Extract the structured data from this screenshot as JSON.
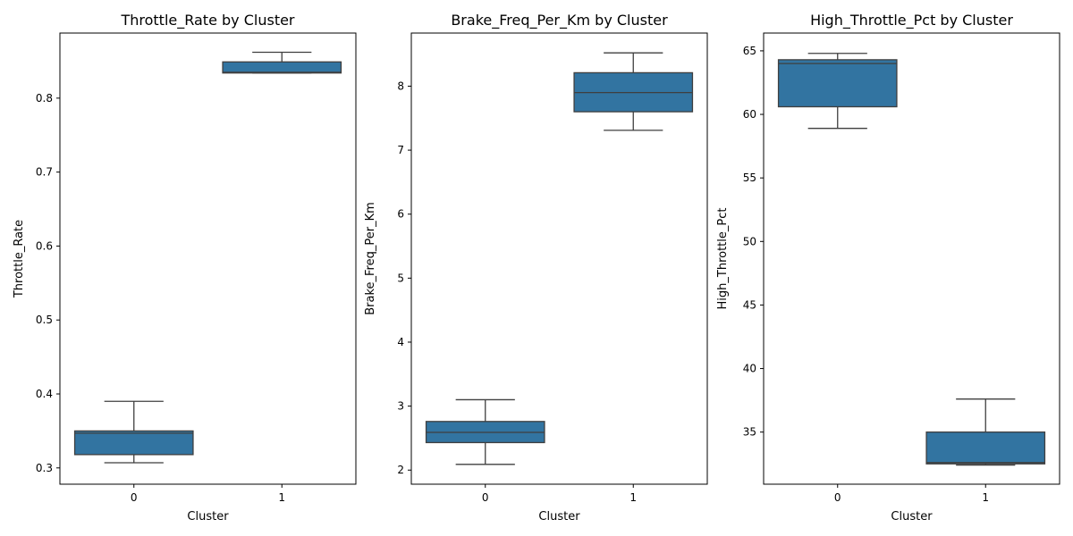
{
  "colors": {
    "box_fill": "#3274a1",
    "line": "#3f3f3f",
    "axis": "#000000",
    "background": "#ffffff"
  },
  "chart_data": [
    {
      "type": "box",
      "title": "Throttle_Rate by Cluster",
      "xlabel": "Cluster",
      "ylabel": "Throttle_Rate",
      "categories": [
        "0",
        "1"
      ],
      "ylim": [
        0.278,
        0.888
      ],
      "yticks": [
        0.3,
        0.4,
        0.5,
        0.6,
        0.7,
        0.8
      ],
      "ytick_labels": [
        "0.3",
        "0.4",
        "0.5",
        "0.6",
        "0.7",
        "0.8"
      ],
      "boxes": [
        {
          "whisker_low": 0.307,
          "q1": 0.318,
          "median": 0.347,
          "q3": 0.35,
          "whisker_high": 0.39
        },
        {
          "whisker_low": 0.834,
          "q1": 0.834,
          "median": 0.835,
          "q3": 0.849,
          "whisker_high": 0.862
        }
      ]
    },
    {
      "type": "box",
      "title": "Brake_Freq_Per_Km by Cluster",
      "xlabel": "Cluster",
      "ylabel": "Brake_Freq_Per_Km",
      "categories": [
        "0",
        "1"
      ],
      "ylim": [
        1.78,
        8.83
      ],
      "yticks": [
        2,
        3,
        4,
        5,
        6,
        7,
        8
      ],
      "ytick_labels": [
        "2",
        "3",
        "4",
        "5",
        "6",
        "7",
        "8"
      ],
      "boxes": [
        {
          "whisker_low": 2.09,
          "q1": 2.43,
          "median": 2.59,
          "q3": 2.76,
          "whisker_high": 3.1
        },
        {
          "whisker_low": 7.31,
          "q1": 7.6,
          "median": 7.9,
          "q3": 8.21,
          "whisker_high": 8.52
        }
      ]
    },
    {
      "type": "box",
      "title": "High_Throttle_Pct by Cluster",
      "xlabel": "Cluster",
      "ylabel": "High_Throttle_Pct",
      "categories": [
        "0",
        "1"
      ],
      "ylim": [
        30.9,
        66.4
      ],
      "yticks": [
        35,
        40,
        45,
        50,
        55,
        60,
        65
      ],
      "ytick_labels": [
        "35",
        "40",
        "45",
        "50",
        "55",
        "60",
        "65"
      ],
      "boxes": [
        {
          "whisker_low": 58.9,
          "q1": 60.6,
          "median": 64.0,
          "q3": 64.3,
          "whisker_high": 64.8
        },
        {
          "whisker_low": 32.4,
          "q1": 32.5,
          "median": 32.6,
          "q3": 35.0,
          "whisker_high": 37.6
        }
      ]
    }
  ]
}
